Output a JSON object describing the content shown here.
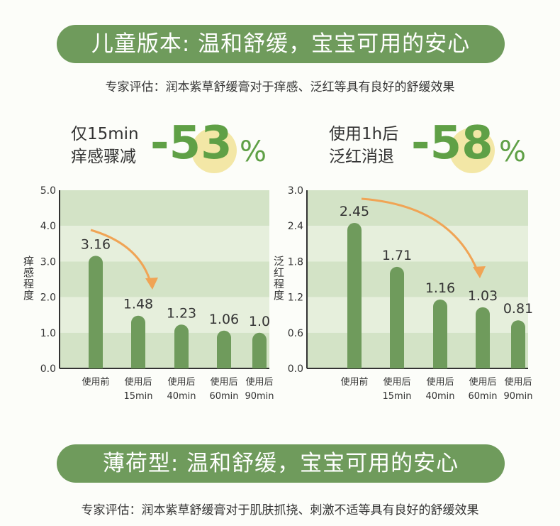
{
  "section1": {
    "title": "儿童版本: 温和舒缓，宝宝可用的安心",
    "subtitle": "专家评估：润本紫草舒缓膏对于痒感、泛红等具有良好的舒缓效果"
  },
  "stats": [
    {
      "line1": "仅15min",
      "line2": "痒感骤减",
      "value": "-53",
      "unit": "%"
    },
    {
      "line1": "使用1h后",
      "line2": "泛红消退",
      "value": "-58",
      "unit": "%"
    }
  ],
  "chart_data": [
    {
      "type": "bar",
      "ylabel": "痒感程度",
      "ylim": [
        0,
        5
      ],
      "yticks": [
        "0.0",
        "1.0",
        "2.0",
        "3.0",
        "4.0",
        "5.0"
      ],
      "categories": [
        [
          "使用前",
          ""
        ],
        [
          "使用后",
          "15min"
        ],
        [
          "使用后",
          "40min"
        ],
        [
          "使用后",
          "60min"
        ],
        [
          "使用后",
          "90min"
        ]
      ],
      "values": [
        3.16,
        1.48,
        1.23,
        1.06,
        1.0
      ],
      "labels": [
        "3.16",
        "1.48",
        "1.23",
        "1.06",
        "1.0"
      ]
    },
    {
      "type": "bar",
      "ylabel": "泛红程度",
      "ylim": [
        0,
        3
      ],
      "yticks": [
        "0.0",
        "0.6",
        "1.2",
        "1.8",
        "2.4",
        "3.0"
      ],
      "categories": [
        [
          "使用前",
          ""
        ],
        [
          "使用后",
          "15min"
        ],
        [
          "使用后",
          "40min"
        ],
        [
          "使用后",
          "60min"
        ],
        [
          "使用后",
          "90min"
        ]
      ],
      "values": [
        2.45,
        1.71,
        1.16,
        1.03,
        0.81
      ],
      "labels": [
        "2.45",
        "1.71",
        "1.16",
        "1.03",
        "0.81"
      ]
    }
  ],
  "colors": {
    "bar": "#6f9b5c",
    "accent": "#5fa046",
    "arrow": "#f0a455",
    "bandDark": "#d3e3c6",
    "bandLight": "#e6efdc"
  },
  "section2": {
    "title": "薄荷型: 温和舒缓，宝宝可用的安心",
    "subtitle": "专家评估：润本紫草舒缓膏对于肌肤抓挠、刺激不适等具有良好的舒缓效果"
  }
}
